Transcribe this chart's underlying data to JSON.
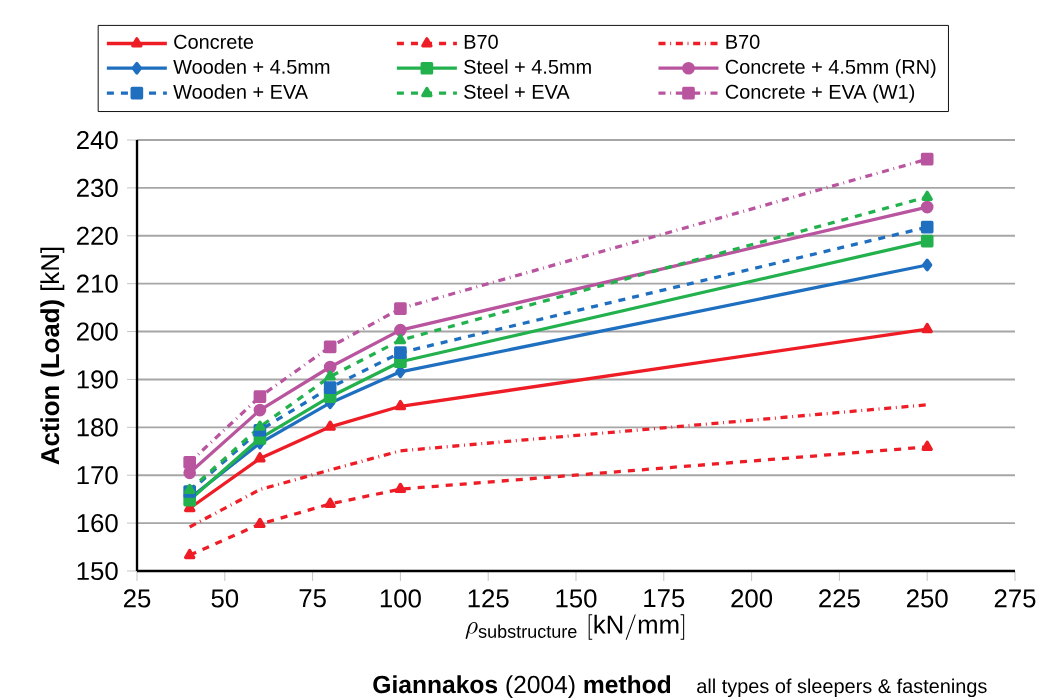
{
  "chart_data": {
    "type": "line",
    "title": "**Giannakos** (2004) **method**",
    "subtitle": "all types of sleepers & fastenings",
    "xlabel": "\\rho_{\\mathrm{substructure}}\\ [\\mathrm{kN/mm}]",
    "ylabel": "**Action (Load)** [kN]",
    "x": [
      40,
      60,
      80,
      100,
      250
    ],
    "series": [
      {
        "name": "Concrete",
        "color": "#ee1c25",
        "marker": "triangle",
        "line_style": "solid",
        "values": [
          163.1,
          173.5,
          180.1,
          184.4,
          200.5
        ]
      },
      {
        "name": "B70",
        "color": "#ee1c25",
        "marker": "triangle",
        "line_style": "dashed",
        "values": [
          153.3,
          159.8,
          164.0,
          167.1,
          175.9
        ]
      },
      {
        "name": "B70",
        "color": "#ee1c25",
        "marker": "none",
        "line_style": "dashdot",
        "values": [
          159.2,
          167.0,
          171.1,
          175.1,
          184.7
        ]
      },
      {
        "name": "Wooden + 4.5mm",
        "color": "#1f6fc0",
        "marker": "diamond",
        "line_style": "solid",
        "values": [
          165.2,
          176.7,
          185.1,
          191.6,
          213.9
        ]
      },
      {
        "name": "Steel + 4.5mm",
        "color": "#22b14c",
        "marker": "square",
        "line_style": "solid",
        "values": [
          164.8,
          177.7,
          186.4,
          193.7,
          218.9
        ]
      },
      {
        "name": "Concrete + 4.5mm (RN)",
        "color": "#b9549f",
        "marker": "circle",
        "line_style": "solid",
        "values": [
          170.5,
          183.6,
          192.6,
          200.3,
          226.0
        ]
      },
      {
        "name": "Wooden + EVA",
        "color": "#1f6fc0",
        "marker": "square",
        "line_style": "dashed",
        "values": [
          166.6,
          179.4,
          188.3,
          195.6,
          221.8
        ]
      },
      {
        "name": "Steel + EVA",
        "color": "#22b14c",
        "marker": "triangle",
        "line_style": "dashed",
        "values": [
          166.9,
          180.1,
          190.6,
          198.2,
          228.1
        ]
      },
      {
        "name": "Concrete + EVA (W1)",
        "color": "#b9549f",
        "marker": "square",
        "line_style": "dashdot",
        "values": [
          172.7,
          186.4,
          196.8,
          204.8,
          236.0
        ]
      }
    ],
    "xlim": [
      25,
      275
    ],
    "xticks": [
      25,
      50,
      75,
      100,
      125,
      150,
      175,
      200,
      225,
      250,
      275
    ],
    "ylim": [
      150,
      240
    ],
    "yticks": [
      150,
      160,
      170,
      180,
      190,
      200,
      210,
      220,
      230,
      240
    ],
    "grid": "y",
    "legend": "top"
  }
}
